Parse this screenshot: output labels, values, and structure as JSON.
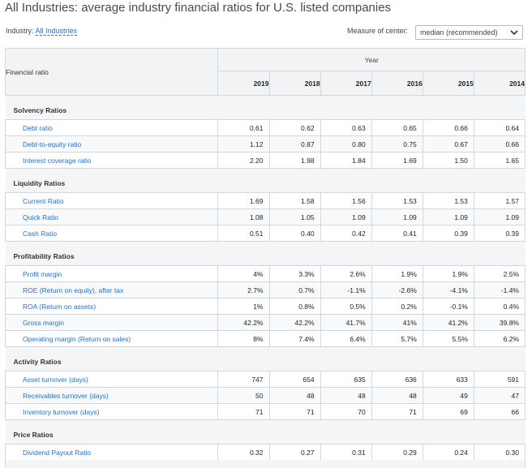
{
  "title": "All Industries: average industry financial ratios for U.S. listed companies",
  "industry_label": "Industry:",
  "industry_value": "All Industries",
  "measure_label": "Measure of center:",
  "measure_value": "median (recommended)",
  "table": {
    "ratio_header": "Financial ratio",
    "year_header": "Year",
    "years": [
      "2019",
      "2018",
      "2017",
      "2016",
      "2015",
      "2014"
    ],
    "sections": [
      {
        "name": "Solvency Ratios",
        "rows": [
          {
            "label": "Debt ratio",
            "values": [
              "0.61",
              "0.62",
              "0.63",
              "0.65",
              "0.66",
              "0.64"
            ]
          },
          {
            "label": "Debt-to-equity ratio",
            "values": [
              "1.12",
              "0.87",
              "0.80",
              "0.75",
              "0.67",
              "0.66"
            ]
          },
          {
            "label": "Interest coverage ratio",
            "values": [
              "2.20",
              "1.98",
              "1.84",
              "1.69",
              "1.50",
              "1.65"
            ]
          }
        ]
      },
      {
        "name": "Liquidity Ratios",
        "rows": [
          {
            "label": "Current Ratio",
            "values": [
              "1.69",
              "1.58",
              "1.56",
              "1.53",
              "1.53",
              "1.57"
            ]
          },
          {
            "label": "Quick Ratio",
            "values": [
              "1.08",
              "1.05",
              "1.09",
              "1.09",
              "1.09",
              "1.09"
            ]
          },
          {
            "label": "Cash Ratio",
            "values": [
              "0.51",
              "0.40",
              "0.42",
              "0.41",
              "0.39",
              "0.39"
            ]
          }
        ]
      },
      {
        "name": "Profitability Ratios",
        "rows": [
          {
            "label": "Profit margin",
            "values": [
              "4%",
              "3.3%",
              "2.6%",
              "1.9%",
              "1.9%",
              "2.5%"
            ]
          },
          {
            "label": "ROE (Return on equity), after tax",
            "values": [
              "2.7%",
              "0.7%",
              "-1.1%",
              "-2.6%",
              "-4.1%",
              "-1.4%"
            ]
          },
          {
            "label": "ROA (Return on assets)",
            "values": [
              "1%",
              "0.8%",
              "0.5%",
              "0.2%",
              "-0.1%",
              "0.4%"
            ]
          },
          {
            "label": "Gross margin",
            "values": [
              "42.2%",
              "42.2%",
              "41.7%",
              "41%",
              "41.2%",
              "39.8%"
            ]
          },
          {
            "label": "Operating margin (Return on sales)",
            "values": [
              "8%",
              "7.4%",
              "6.4%",
              "5.7%",
              "5.5%",
              "6.2%"
            ]
          }
        ]
      },
      {
        "name": "Activity Ratios",
        "rows": [
          {
            "label": "Asset turnover (days)",
            "values": [
              "747",
              "654",
              "635",
              "636",
              "633",
              "591"
            ]
          },
          {
            "label": "Receivables turnover (days)",
            "values": [
              "50",
              "48",
              "48",
              "48",
              "49",
              "47"
            ]
          },
          {
            "label": "Inventory turnover (days)",
            "values": [
              "71",
              "71",
              "70",
              "71",
              "69",
              "66"
            ]
          }
        ]
      },
      {
        "name": "Price Ratios",
        "rows": [
          {
            "label": "Dividend Payout Ratio",
            "values": [
              "0.32",
              "0.27",
              "0.31",
              "0.29",
              "0.24",
              "0.30"
            ]
          }
        ]
      }
    ]
  },
  "colors": {
    "link": "#2a6ec8",
    "band": "#f3f5f7",
    "border": "#cfd8e0"
  },
  "icons": {
    "select": "chevron-down-icon"
  }
}
